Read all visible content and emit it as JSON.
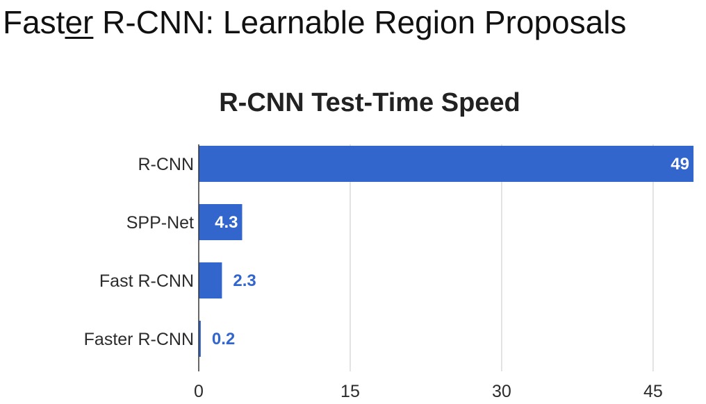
{
  "slide": {
    "title_prefix": "Fast",
    "title_emphasis": "er",
    "title_suffix": " R-CNN: Learnable Region Proposals"
  },
  "colors": {
    "bar": "#3366cc",
    "label_inside": "#ffffff",
    "label_outside": "#3366cc",
    "grid": "#d9d9d9",
    "axis": "#333333"
  },
  "chart_data": {
    "type": "bar",
    "orientation": "horizontal",
    "title": "R-CNN Test-Time Speed",
    "categories": [
      "R-CNN",
      "SPP-Net",
      "Fast R-CNN",
      "Faster R-CNN"
    ],
    "values": [
      49,
      4.3,
      2.3,
      0.2
    ],
    "data_labels": [
      "49",
      "4.3",
      "2.3",
      "0.2"
    ],
    "xticks": [
      0,
      15,
      30,
      45
    ],
    "xlim": [
      0,
      49
    ],
    "grid": true,
    "legend": "none"
  }
}
